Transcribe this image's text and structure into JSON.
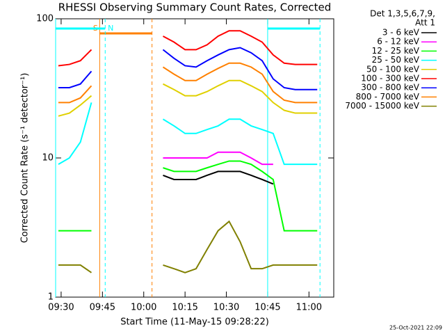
{
  "chart_data": {
    "type": "line",
    "title": "RHESSI Observing Summary Count Rates, Corrected",
    "x_label": "Start Time (11-May-15 09:28:22)",
    "y_label": "Corrected Count Rate (s⁻¹ detector⁻¹)",
    "footer": "25-Oct-2021 22:09",
    "legend_title": [
      "Det 1,3,5,6,7,9,",
      "Att 1"
    ],
    "log_y": true,
    "xlim": [
      "09:28",
      "11:09"
    ],
    "xticks": [
      "09:30",
      "09:45",
      "10:00",
      "10:15",
      "10:30",
      "10:45",
      "11:00"
    ],
    "ylim": [
      1,
      100
    ],
    "yticks": [
      1,
      10,
      100
    ],
    "x": [
      "09:29",
      "09:33",
      "09:37",
      "09:41",
      "09:45",
      "09:49",
      "09:53",
      "09:57",
      "10:01",
      "10:05",
      "10:07",
      "10:11",
      "10:15",
      "10:19",
      "10:23",
      "10:27",
      "10:31",
      "10:35",
      "10:39",
      "10:43",
      "10:47",
      "10:51",
      "10:55",
      "10:59",
      "11:03"
    ],
    "flags": [
      {
        "label": "S",
        "color": "#ff8000",
        "intervals": [
          [
            "09:44",
            "10:03"
          ]
        ]
      },
      {
        "label": "N",
        "color": "#00ffff",
        "intervals": [
          [
            "09:28",
            "09:46"
          ],
          [
            "10:45",
            "11:04"
          ]
        ]
      }
    ],
    "series": [
      {
        "name": "3 - 6 keV",
        "color": "#000000",
        "values": [
          null,
          null,
          null,
          null,
          null,
          null,
          null,
          null,
          null,
          null,
          7.5,
          7,
          7,
          7,
          7.5,
          8,
          8,
          8,
          7.5,
          7,
          6.5,
          null,
          null,
          null,
          null
        ]
      },
      {
        "name": "6 - 12 keV",
        "color": "#ff00ff",
        "values": [
          null,
          null,
          null,
          null,
          null,
          null,
          null,
          null,
          null,
          null,
          10,
          10,
          10,
          10,
          10,
          11,
          11,
          11,
          10,
          9,
          9,
          null,
          null,
          null,
          null
        ]
      },
      {
        "name": "12 - 25 keV",
        "color": "#00ff00",
        "values": [
          3,
          3,
          3,
          3,
          null,
          null,
          null,
          null,
          null,
          null,
          8.5,
          8,
          8,
          8,
          8.5,
          9,
          9.5,
          9.5,
          9,
          8,
          7,
          3,
          3,
          3,
          3
        ]
      },
      {
        "name": "25 - 50 keV",
        "color": "#00ffff",
        "values": [
          9,
          10,
          13,
          25,
          null,
          null,
          null,
          null,
          null,
          null,
          19,
          17,
          15,
          15,
          16,
          17,
          19,
          19,
          17,
          16,
          15,
          9,
          9,
          9,
          9
        ]
      },
      {
        "name": "50 - 100 keV",
        "color": "#e0d000",
        "values": [
          20,
          21,
          24,
          28,
          null,
          null,
          null,
          null,
          null,
          null,
          34,
          31,
          28,
          28,
          30,
          33,
          36,
          36,
          33,
          30,
          25,
          22,
          21,
          21,
          21
        ]
      },
      {
        "name": "100 - 300 keV",
        "color": "#ff0000",
        "values": [
          46,
          47,
          50,
          60,
          null,
          null,
          null,
          null,
          null,
          null,
          75,
          68,
          60,
          60,
          65,
          75,
          82,
          82,
          75,
          68,
          55,
          48,
          47,
          47,
          47
        ]
      },
      {
        "name": "300 - 800 keV",
        "color": "#0000ff",
        "values": [
          32,
          32,
          34,
          42,
          null,
          null,
          null,
          null,
          null,
          null,
          60,
          52,
          46,
          45,
          50,
          55,
          60,
          62,
          57,
          50,
          37,
          32,
          31,
          31,
          31
        ]
      },
      {
        "name": "800 - 7000 keV",
        "color": "#ff8000",
        "values": [
          25,
          25,
          27,
          33,
          null,
          null,
          null,
          null,
          null,
          null,
          45,
          40,
          36,
          36,
          40,
          44,
          48,
          48,
          45,
          40,
          30,
          26,
          25,
          25,
          25
        ]
      },
      {
        "name": "7000 - 15000 keV",
        "color": "#808000",
        "values": [
          1.7,
          1.7,
          1.7,
          1.5,
          null,
          null,
          null,
          null,
          null,
          null,
          1.7,
          1.6,
          1.5,
          1.6,
          2.2,
          3,
          3.5,
          2.5,
          1.6,
          1.6,
          1.7,
          1.7,
          1.7,
          1.7,
          1.7
        ]
      }
    ]
  }
}
